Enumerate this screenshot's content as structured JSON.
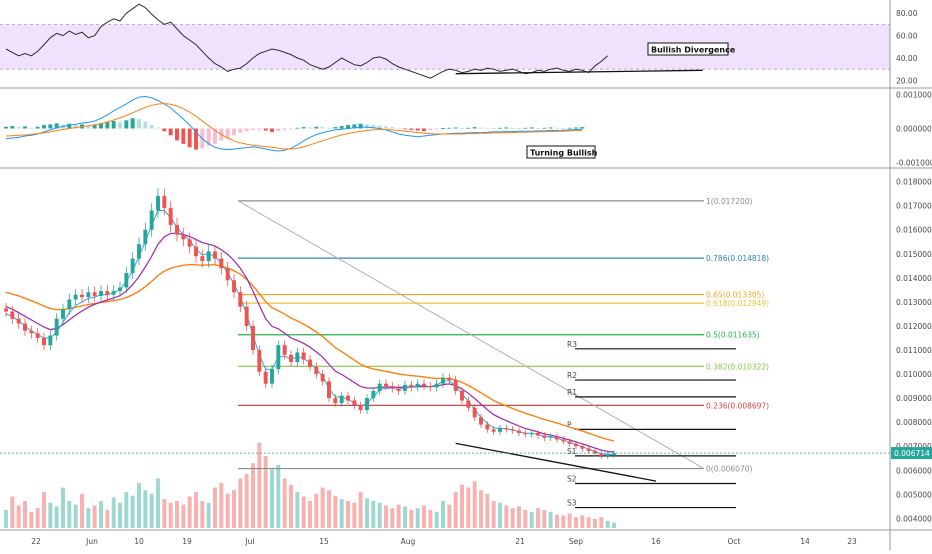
{
  "chart_data": [
    {
      "type": "line",
      "panel": "rsi",
      "y_ticks": [
        "80.00",
        "60.00",
        "40.00",
        "20.00"
      ],
      "ylim": [
        15,
        90
      ],
      "band": [
        30,
        70
      ],
      "band_color": "#f0e2fb",
      "line_color": "#2b2b2b",
      "values": [
        48,
        45,
        42,
        44,
        42,
        46,
        52,
        58,
        62,
        60,
        64,
        61,
        63,
        58,
        60,
        68,
        72,
        75,
        73,
        80,
        84,
        88,
        85,
        79,
        74,
        70,
        72,
        66,
        60,
        56,
        52,
        46,
        40,
        35,
        32,
        28,
        30,
        31,
        35,
        40,
        44,
        46,
        48,
        47,
        45,
        43,
        40,
        38,
        34,
        32,
        30,
        32,
        36,
        40,
        37,
        34,
        33,
        36,
        40,
        41,
        39,
        35,
        32,
        30,
        28,
        26,
        24,
        22,
        25,
        28,
        30,
        29,
        27,
        28,
        30,
        29,
        31,
        30,
        28,
        29,
        30,
        28,
        26,
        27,
        29,
        28,
        30,
        31,
        29,
        28,
        30,
        29,
        27,
        33,
        37,
        42
      ],
      "annotation": "Bullish Divergence",
      "divergence_line": {
        "from": [
          71,
          26
        ],
        "to": [
          110,
          29
        ]
      }
    },
    {
      "type": "bar",
      "panel": "macd",
      "y_ticks": [
        "0.001000",
        "0.000000",
        "-0.001000"
      ],
      "ylim": [
        -0.0011,
        0.0011
      ],
      "hist_pos_color": "#26a69a",
      "hist_pos_light": "#b2dfdb",
      "hist_neg_color": "#ef5350",
      "hist_neg_light": "#f8bbd0",
      "macd_color": "#2196f3",
      "signal_color": "#ff7f0e",
      "hist": [
        5e-05,
        7e-05,
        4e-05,
        6e-05,
        2e-05,
        5e-05,
        0.0001,
        0.00012,
        0.00015,
        0.00011,
        0.00014,
        0.0001,
        0.00012,
        8e-05,
        0.0001,
        0.00016,
        0.0002,
        0.00022,
        0.00018,
        0.00024,
        0.0003,
        0.00027,
        0.0002,
        0.0001,
        3e-05,
        -8e-05,
        -0.0002,
        -0.00035,
        -0.00045,
        -0.00055,
        -0.00062,
        -0.00058,
        -0.0005,
        -0.00045,
        -0.00035,
        -0.0003,
        -0.0002,
        -0.00012,
        -8e-05,
        -4e-05,
        -3e-05,
        -6e-05,
        -0.0001,
        -8e-05,
        -4e-05,
        -2e-05,
        2e-05,
        4e-05,
        3e-05,
        5e-05,
        4e-05,
        2e-05,
        4e-05,
        7e-05,
        0.0001,
        0.00012,
        0.00014,
        0.00012,
        0.0001,
        8e-05,
        6e-05,
        4e-05,
        2e-05,
        -2e-05,
        -4e-05,
        -6e-05,
        -8e-05,
        -5e-05,
        -3e-05,
        1e-05,
        2e-05,
        3e-05,
        1e-05,
        2e-05,
        4e-05,
        3e-05,
        2e-05,
        1e-05,
        2e-05,
        3e-05,
        2e-05,
        1e-05,
        2e-05,
        3e-05,
        1e-05,
        2e-05,
        3e-05,
        2e-05,
        1e-05,
        2e-05,
        3e-05,
        4e-05
      ],
      "macd": [
        -0.0003,
        -0.00028,
        -0.00026,
        -0.00022,
        -0.0002,
        -0.00016,
        -0.0001,
        -4e-05,
        2e-05,
        6e-05,
        0.0001,
        0.00012,
        0.00016,
        0.00018,
        0.00022,
        0.0003,
        0.0004,
        0.00052,
        0.00062,
        0.00072,
        0.00084,
        0.00092,
        0.00094,
        0.0009,
        0.00082,
        0.00072,
        0.0006,
        0.00044,
        0.00028,
        0.0001,
        -0.0001,
        -0.0003,
        -0.00045,
        -0.00055,
        -0.0006,
        -0.00062,
        -0.0006,
        -0.00058,
        -0.00056,
        -0.00054,
        -0.00056,
        -0.0006,
        -0.00064,
        -0.00066,
        -0.00064,
        -0.00058,
        -0.00048,
        -0.00036,
        -0.00026,
        -0.00018,
        -0.00012,
        -8e-05,
        -4e-05,
        -2e-05,
        0.0,
        2e-05,
        4e-05,
        4e-05,
        2e-05,
        0.0,
        -4e-05,
        -0.0001,
        -0.00016,
        -0.0002,
        -0.00022,
        -0.00024,
        -0.00022,
        -0.0002,
        -0.00018,
        -0.00016,
        -0.00015,
        -0.00014,
        -0.00014,
        -0.00013,
        -0.00012,
        -0.00012,
        -0.00011,
        -0.0001,
        -0.0001,
        -9e-05,
        -9e-05,
        -8e-05,
        -8e-05,
        -8e-05,
        -7e-05,
        -7e-05,
        -6e-05,
        -6e-05,
        -5e-05,
        -4e-05,
        -3e-05,
        -2e-05
      ],
      "signal": [
        -0.00022,
        -0.00021,
        -0.0002,
        -0.00019,
        -0.00017,
        -0.00015,
        -0.00013,
        -0.0001,
        -6e-05,
        -3e-05,
        0.0,
        3e-05,
        5e-05,
        8e-05,
        0.00011,
        0.00014,
        0.00019,
        0.00025,
        0.00031,
        0.00038,
        0.00046,
        0.00054,
        0.00062,
        0.00068,
        0.00072,
        0.00073,
        0.00071,
        0.00066,
        0.00058,
        0.00048,
        0.00036,
        0.00022,
        8e-05,
        -6e-05,
        -0.00018,
        -0.00028,
        -0.00036,
        -0.00042,
        -0.00046,
        -0.00049,
        -0.00051,
        -0.00053,
        -0.00055,
        -0.00058,
        -0.0006,
        -0.0006,
        -0.00058,
        -0.00054,
        -0.00048,
        -0.00042,
        -0.00036,
        -0.0003,
        -0.00024,
        -0.00019,
        -0.00015,
        -0.00011,
        -8e-05,
        -6e-05,
        -4e-05,
        -3e-05,
        -3e-05,
        -4e-05,
        -6e-05,
        -8e-05,
        -0.0001,
        -0.00012,
        -0.00014,
        -0.00015,
        -0.00016,
        -0.00016,
        -0.00016,
        -0.00016,
        -0.00016,
        -0.00015,
        -0.00015,
        -0.00014,
        -0.00014,
        -0.00013,
        -0.00013,
        -0.00012,
        -0.00012,
        -0.00011,
        -0.00011,
        -0.0001,
        -0.0001,
        -9e-05,
        -9e-05,
        -8e-05,
        -8e-05,
        -7e-05,
        -6e-05,
        -5e-05
      ],
      "annotation": "Turning Bullish"
    },
    {
      "type": "candlestick",
      "panel": "price",
      "y_ticks": [
        "0.018000",
        "0.017000",
        "0.016000",
        "0.015000",
        "0.014000",
        "0.013000",
        "0.012000",
        "0.011000",
        "0.010000",
        "0.009000",
        "0.008000",
        "0.007000",
        "0.006000",
        "0.005000",
        "0.004000"
      ],
      "ylim": [
        0.0036,
        0.0184
      ],
      "x_ticks": [
        "22",
        "Jun",
        "10",
        "19",
        "Jul",
        "15",
        "Aug",
        "21",
        "Sep",
        "16",
        "Oct",
        "14",
        "23"
      ],
      "last_price_label": "0.006714",
      "bull_color": "#26a69a",
      "bear_color": "#ef5350",
      "ema_fast_color": "#2aa7dd",
      "ema_mid_color": "#9c27b0",
      "ema_slow_color": "#ff7f0e",
      "closes": [
        0.0126,
        0.0123,
        0.0121,
        0.0118,
        0.0117,
        0.0115,
        0.0112,
        0.0116,
        0.0123,
        0.0127,
        0.0131,
        0.0133,
        0.0132,
        0.0134,
        0.01325,
        0.01345,
        0.0133,
        0.01345,
        0.0136,
        0.0142,
        0.0148,
        0.0154,
        0.016,
        0.0168,
        0.0174,
        0.0169,
        0.0162,
        0.0158,
        0.0156,
        0.0153,
        0.0149,
        0.0147,
        0.0151,
        0.0148,
        0.0144,
        0.0139,
        0.0134,
        0.0128,
        0.012,
        0.011,
        0.0101,
        0.0096,
        0.0102,
        0.0112,
        0.0108,
        0.0105,
        0.0109,
        0.0106,
        0.0103,
        0.01,
        0.0097,
        0.009,
        0.0088,
        0.0091,
        0.0089,
        0.0087,
        0.0085,
        0.009,
        0.0093,
        0.0096,
        0.0095,
        0.0094,
        0.0093,
        0.00955,
        0.00945,
        0.0096,
        0.0095,
        0.00945,
        0.0096,
        0.00985,
        0.00975,
        0.0093,
        0.0089,
        0.0086,
        0.0082,
        0.0079,
        0.0077,
        0.0076,
        0.00775,
        0.0077,
        0.00765,
        0.00755,
        0.0075,
        0.00755,
        0.00745,
        0.00735,
        0.0074,
        0.00728,
        0.0072,
        0.0071,
        0.007,
        0.0069,
        0.0068,
        0.0067,
        0.0066,
        0.00664,
        0.00671
      ],
      "ema_fast": [
        0.0125,
        0.0124,
        0.0122,
        0.012,
        0.0118,
        0.01165,
        0.0115,
        0.0115,
        0.01175,
        0.01215,
        0.01255,
        0.01285,
        0.013,
        0.01315,
        0.0132,
        0.0133,
        0.0133,
        0.01338,
        0.0135,
        0.01385,
        0.0143,
        0.0149,
        0.0155,
        0.0162,
        0.0168,
        0.0168,
        0.0165,
        0.0161,
        0.0158,
        0.01555,
        0.0152,
        0.01495,
        0.015,
        0.0149,
        0.0146,
        0.0142,
        0.01375,
        0.0132,
        0.0125,
        0.0116,
        0.0108,
        0.0102,
        0.0102,
        0.0107,
        0.01075,
        0.0106,
        0.01072,
        0.01065,
        0.01045,
        0.0102,
        0.0099,
        0.0094,
        0.00905,
        0.00905,
        0.00895,
        0.0088,
        0.00862,
        0.0088,
        0.00905,
        0.00935,
        0.00942,
        0.00941,
        0.00935,
        0.00945,
        0.00945,
        0.00953,
        0.00951,
        0.00948,
        0.00955,
        0.0097,
        0.00973,
        0.0095,
        0.00918,
        0.00888,
        0.00852,
        0.0082,
        0.00794,
        0.00776,
        0.00775,
        0.00772,
        0.00768,
        0.0076,
        0.00754,
        0.00754,
        0.00748,
        0.0074,
        0.0074,
        0.00733,
        0.00725,
        0.00716,
        0.00707,
        0.00698,
        0.00688,
        0.00678,
        0.00668,
        0.00665,
        0.00667
      ],
      "ema_mid": [
        0.0128,
        0.0127,
        0.01255,
        0.0124,
        0.01225,
        0.0121,
        0.01195,
        0.01185,
        0.0119,
        0.01205,
        0.01225,
        0.01245,
        0.01262,
        0.01278,
        0.0129,
        0.013,
        0.01308,
        0.01316,
        0.01326,
        0.01345,
        0.01372,
        0.01405,
        0.01445,
        0.0149,
        0.0154,
        0.0157,
        0.01585,
        0.01585,
        0.0158,
        0.01572,
        0.0156,
        0.01546,
        0.0154,
        0.01532,
        0.01517,
        0.01497,
        0.01472,
        0.0144,
        0.01398,
        0.01345,
        0.01286,
        0.0123,
        0.01198,
        0.01188,
        0.0117,
        0.0115,
        0.0114,
        0.01128,
        0.01112,
        0.01092,
        0.0107,
        0.0104,
        0.01012,
        0.00998,
        0.00982,
        0.00965,
        0.00948,
        0.00942,
        0.00941,
        0.00945,
        0.00946,
        0.00946,
        0.00944,
        0.00946,
        0.00946,
        0.00948,
        0.00948,
        0.00948,
        0.0095,
        0.00956,
        0.00959,
        0.00952,
        0.00938,
        0.0092,
        0.00898,
        0.00875,
        0.00852,
        0.00831,
        0.00818,
        0.00806,
        0.00795,
        0.00784,
        0.00774,
        0.00767,
        0.00759,
        0.00751,
        0.00746,
        0.0074,
        0.00733,
        0.00726,
        0.00718,
        0.0071,
        0.00701,
        0.00692,
        0.00684,
        0.00678,
        0.00676
      ],
      "ema_slow": [
        0.0134,
        0.01333,
        0.01325,
        0.01315,
        0.01305,
        0.01294,
        0.01282,
        0.01273,
        0.01268,
        0.01268,
        0.01272,
        0.01278,
        0.01283,
        0.01289,
        0.01293,
        0.01298,
        0.01301,
        0.01305,
        0.0131,
        0.01318,
        0.0133,
        0.01345,
        0.01363,
        0.01385,
        0.0141,
        0.01428,
        0.0144,
        0.01447,
        0.01452,
        0.01455,
        0.01454,
        0.01452,
        0.01454,
        0.01454,
        0.01449,
        0.01441,
        0.0143,
        0.01415,
        0.01394,
        0.01367,
        0.01335,
        0.01301,
        0.01276,
        0.01264,
        0.01249,
        0.01233,
        0.01221,
        0.01207,
        0.01192,
        0.01175,
        0.01156,
        0.01133,
        0.0111,
        0.01093,
        0.01076,
        0.01058,
        0.0104,
        0.01029,
        0.01021,
        0.01016,
        0.01011,
        0.01006,
        0.01,
        0.00997,
        0.00993,
        0.00991,
        0.00988,
        0.00984,
        0.00982,
        0.00982,
        0.00981,
        0.00975,
        0.00965,
        0.00953,
        0.00938,
        0.00922,
        0.00906,
        0.0089,
        0.00878,
        0.00867,
        0.00857,
        0.00847,
        0.00837,
        0.00829,
        0.0082,
        0.00811,
        0.00804,
        0.00796,
        0.00788,
        0.0078,
        0.00771,
        0.00763,
        0.00754,
        0.00745,
        0.00736,
        0.00728,
        0.00722
      ],
      "volume": [
        0.2,
        0.35,
        0.25,
        0.3,
        0.18,
        0.22,
        0.4,
        0.28,
        0.24,
        0.45,
        0.3,
        0.26,
        0.38,
        0.22,
        0.25,
        0.3,
        0.2,
        0.34,
        0.28,
        0.4,
        0.36,
        0.5,
        0.42,
        0.38,
        0.55,
        0.32,
        0.28,
        0.3,
        0.26,
        0.35,
        0.4,
        0.3,
        0.28,
        0.45,
        0.5,
        0.38,
        0.42,
        0.55,
        0.6,
        0.72,
        0.95,
        0.8,
        0.65,
        0.7,
        0.55,
        0.48,
        0.4,
        0.35,
        0.3,
        0.38,
        0.45,
        0.42,
        0.36,
        0.32,
        0.3,
        0.28,
        0.4,
        0.33,
        0.3,
        0.28,
        0.25,
        0.22,
        0.26,
        0.24,
        0.2,
        0.22,
        0.25,
        0.2,
        0.18,
        0.3,
        0.26,
        0.4,
        0.48,
        0.45,
        0.52,
        0.42,
        0.38,
        0.3,
        0.28,
        0.25,
        0.22,
        0.24,
        0.2,
        0.18,
        0.22,
        0.2,
        0.18,
        0.15,
        0.14,
        0.16,
        0.12,
        0.14,
        0.12,
        0.1,
        0.12,
        0.08,
        0.06
      ],
      "fib_levels": [
        {
          "label": "1(0.017200)",
          "value": 0.0172,
          "color": "#8c8c8c"
        },
        {
          "label": "0.786(0.014818)",
          "value": 0.014818,
          "color": "#2e86c1"
        },
        {
          "label": "0.65(0.013305)",
          "value": 0.013305,
          "color": "#f5a623"
        },
        {
          "label": "0.618(0.012949)",
          "value": 0.012949,
          "color": "#e8c63a"
        },
        {
          "label": "0.5(0.011635)",
          "value": 0.011635,
          "color": "#22b14c"
        },
        {
          "label": "0.382(0.010322)",
          "value": 0.010322,
          "color": "#8bc34a"
        },
        {
          "label": "0.236(0.008697)",
          "value": 0.008697,
          "color": "#d64545"
        },
        {
          "label": "0(0.006070)",
          "value": 0.00607,
          "color": "#8c8c8c"
        }
      ],
      "pivots": [
        {
          "label": "R3",
          "value": 0.01105
        },
        {
          "label": "R2",
          "value": 0.00975
        },
        {
          "label": "R1",
          "value": 0.00905
        },
        {
          "label": "P",
          "value": 0.0077
        },
        {
          "label": "S1",
          "value": 0.0066
        },
        {
          "label": "S2",
          "value": 0.00545
        },
        {
          "label": "S3",
          "value": 0.00445
        }
      ]
    }
  ]
}
